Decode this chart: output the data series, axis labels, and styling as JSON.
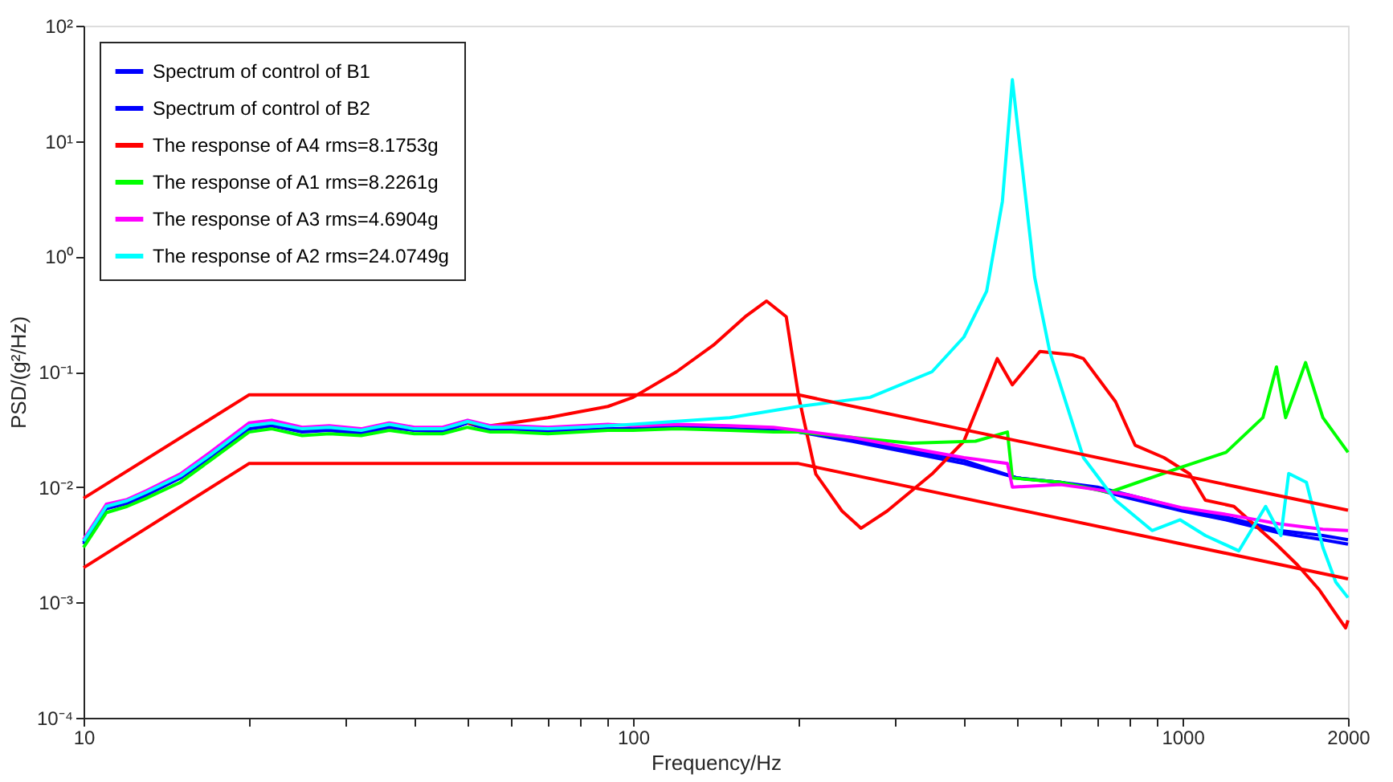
{
  "chart_data": {
    "type": "line",
    "xlabel": "Frequency/Hz",
    "ylabel": "PSD/(g²/Hz)",
    "log": "xy",
    "grid": false,
    "legend": "top left",
    "line_style": "solid",
    "marker": "none",
    "xlim": [
      10,
      2000
    ],
    "ylim": [
      0.0001,
      100
    ],
    "xticks": [
      10,
      {
        "value": 20,
        "label": null
      },
      {
        "value": 30,
        "label": null
      },
      {
        "value": 40,
        "label": null
      },
      {
        "value": 50,
        "label": null
      },
      {
        "value": 60,
        "label": null
      },
      {
        "value": 70,
        "label": null
      },
      {
        "value": 80,
        "label": null
      },
      {
        "value": 90,
        "label": null
      },
      100,
      {
        "value": 200,
        "label": null
      },
      {
        "value": 300,
        "label": null
      },
      {
        "value": 400,
        "label": null
      },
      {
        "value": 500,
        "label": null
      },
      {
        "value": 600,
        "label": null
      },
      {
        "value": 700,
        "label": null
      },
      {
        "value": 800,
        "label": null
      },
      {
        "value": 900,
        "label": null
      },
      1000,
      2000
    ],
    "yticks": [
      {
        "value": 0.0001,
        "label": "10⁻⁴"
      },
      {
        "value": 0.001,
        "label": "10⁻³"
      },
      {
        "value": 0.01,
        "label": "10⁻²"
      },
      {
        "value": 0.1,
        "label": "10⁻¹"
      },
      {
        "value": 1,
        "label": "10⁰"
      },
      {
        "value": 10,
        "label": "10¹"
      },
      {
        "value": 100,
        "label": "10²"
      }
    ],
    "series": [
      {
        "name": "Spectrum of control of B1",
        "color": "#0000ff",
        "x": [
          10,
          11,
          12,
          13,
          15,
          17,
          20,
          22,
          25,
          28,
          32,
          36,
          40,
          45,
          50,
          55,
          60,
          70,
          80,
          90,
          100,
          120,
          150,
          180,
          200,
          250,
          300,
          400,
          500,
          600,
          700,
          800,
          1000,
          1200,
          1500,
          1800,
          2000
        ],
        "values": [
          0.0032,
          0.0065,
          0.0072,
          0.0085,
          0.012,
          0.018,
          0.032,
          0.034,
          0.03,
          0.031,
          0.029,
          0.033,
          0.031,
          0.03,
          0.036,
          0.031,
          0.032,
          0.03,
          0.031,
          0.032,
          0.032,
          0.033,
          0.032,
          0.031,
          0.03,
          0.025,
          0.021,
          0.016,
          0.012,
          0.011,
          0.0095,
          0.008,
          0.0062,
          0.0052,
          0.004,
          0.0035,
          0.0032
        ]
      },
      {
        "name": "Spectrum of control of B2",
        "color": "#0000ff",
        "x": [
          10,
          11,
          12,
          13,
          15,
          17,
          20,
          22,
          25,
          28,
          32,
          36,
          40,
          45,
          50,
          55,
          60,
          70,
          80,
          90,
          100,
          120,
          150,
          180,
          200,
          250,
          300,
          400,
          500,
          600,
          700,
          800,
          1000,
          1200,
          1500,
          1800,
          2000
        ],
        "values": [
          0.0033,
          0.0066,
          0.0073,
          0.0086,
          0.012,
          0.018,
          0.032,
          0.034,
          0.031,
          0.031,
          0.03,
          0.033,
          0.031,
          0.031,
          0.036,
          0.032,
          0.032,
          0.031,
          0.031,
          0.032,
          0.032,
          0.033,
          0.032,
          0.031,
          0.03,
          0.026,
          0.022,
          0.017,
          0.012,
          0.011,
          0.01,
          0.0085,
          0.0065,
          0.0055,
          0.0042,
          0.0038,
          0.0035
        ]
      },
      {
        "name": "The response of A4 rms=8.1753g",
        "color": "#ff0000",
        "x": [
          50,
          55,
          60,
          70,
          80,
          90,
          100,
          120,
          140,
          160,
          175,
          190,
          200,
          215,
          240,
          260,
          290,
          350,
          400,
          460,
          490,
          550,
          630,
          660,
          755,
          820,
          925,
          1030,
          1100,
          1240,
          1480,
          1620,
          1770,
          1980,
          2000
        ],
        "values": [
          0.036,
          0.034,
          0.036,
          0.04,
          0.045,
          0.05,
          0.06,
          0.1,
          0.17,
          0.3,
          0.41,
          0.3,
          0.062,
          0.013,
          0.0062,
          0.0044,
          0.0062,
          0.013,
          0.025,
          0.13,
          0.077,
          0.15,
          0.14,
          0.13,
          0.055,
          0.023,
          0.018,
          0.013,
          0.0077,
          0.0068,
          0.0032,
          0.0021,
          0.0013,
          0.0006,
          0.0007
        ]
      },
      {
        "name": "The response of A1 rms=8.2261g",
        "color": "#00ff00",
        "x": [
          10,
          11,
          12,
          13,
          15,
          17,
          20,
          22,
          25,
          28,
          32,
          36,
          40,
          45,
          50,
          55,
          60,
          70,
          80,
          90,
          100,
          120,
          150,
          180,
          200,
          250,
          320,
          420,
          480,
          490,
          600,
          735,
          1000,
          1200,
          1400,
          1482,
          1540,
          1674,
          1800,
          2000
        ],
        "values": [
          0.003,
          0.006,
          0.0068,
          0.008,
          0.011,
          0.017,
          0.03,
          0.032,
          0.028,
          0.029,
          0.028,
          0.031,
          0.029,
          0.029,
          0.033,
          0.03,
          0.03,
          0.029,
          0.03,
          0.031,
          0.031,
          0.032,
          0.031,
          0.03,
          0.03,
          0.027,
          0.024,
          0.025,
          0.03,
          0.012,
          0.011,
          0.009,
          0.015,
          0.02,
          0.04,
          0.11,
          0.04,
          0.12,
          0.04,
          0.02
        ]
      },
      {
        "name": "The response of A3 rms=4.6904g",
        "color": "#ff00ff",
        "x": [
          10,
          11,
          12,
          13,
          15,
          17,
          20,
          22,
          25,
          28,
          32,
          36,
          40,
          45,
          50,
          55,
          60,
          70,
          80,
          90,
          100,
          120,
          150,
          180,
          200,
          250,
          300,
          400,
          480,
          490,
          600,
          700,
          800,
          1000,
          1200,
          1500,
          1800,
          2000
        ],
        "values": [
          0.0035,
          0.0071,
          0.0078,
          0.0093,
          0.013,
          0.02,
          0.036,
          0.038,
          0.033,
          0.034,
          0.032,
          0.036,
          0.033,
          0.033,
          0.038,
          0.034,
          0.034,
          0.033,
          0.034,
          0.035,
          0.034,
          0.035,
          0.034,
          0.033,
          0.031,
          0.027,
          0.023,
          0.018,
          0.016,
          0.01,
          0.0105,
          0.0095,
          0.0085,
          0.0066,
          0.0058,
          0.0048,
          0.0043,
          0.0042
        ]
      },
      {
        "name": "The response of A2 rms=24.0749g",
        "color": "#00ffff",
        "x": [
          10,
          11,
          12,
          13,
          15,
          17,
          20,
          22,
          25,
          28,
          32,
          36,
          40,
          45,
          50,
          55,
          60,
          70,
          80,
          90,
          100,
          150,
          200,
          270,
          350,
          400,
          440,
          470,
          490,
          538,
          573,
          660,
          755,
          880,
          990,
          1100,
          1266,
          1416,
          1510,
          1560,
          1680,
          1800,
          1900,
          2000
        ],
        "values": [
          0.0034,
          0.0068,
          0.0076,
          0.009,
          0.0125,
          0.019,
          0.034,
          0.036,
          0.032,
          0.033,
          0.031,
          0.035,
          0.032,
          0.032,
          0.037,
          0.033,
          0.033,
          0.032,
          0.033,
          0.034,
          0.035,
          0.04,
          0.05,
          0.06,
          0.1,
          0.2,
          0.5,
          3,
          34,
          0.66,
          0.15,
          0.018,
          0.0077,
          0.0042,
          0.0052,
          0.0038,
          0.0028,
          0.0068,
          0.0038,
          0.0131,
          0.011,
          0.003,
          0.0015,
          0.0011
        ]
      },
      {
        "color": "#ff0000",
        "x": [
          10,
          20,
          200,
          2000
        ],
        "values": [
          0.008,
          0.063,
          0.063,
          0.0063
        ]
      },
      {
        "color": "#ff0000",
        "x": [
          10,
          20,
          200,
          2000
        ],
        "values": [
          0.002,
          0.016,
          0.016,
          0.0016
        ]
      }
    ]
  }
}
